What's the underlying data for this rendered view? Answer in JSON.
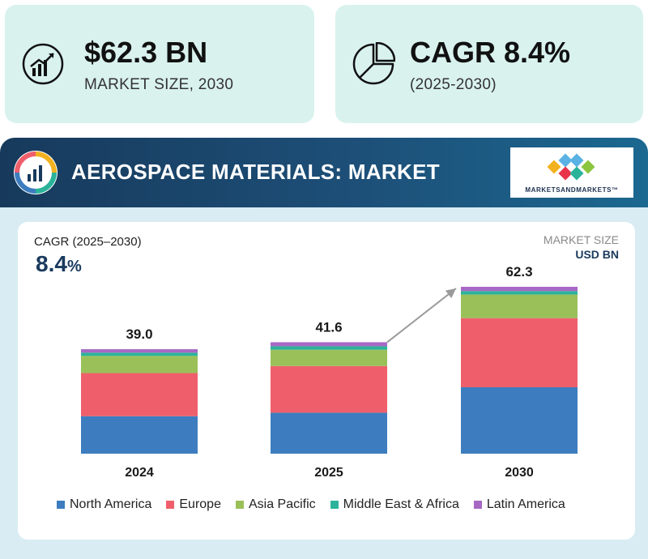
{
  "cards": {
    "market_size": {
      "value": "$62.3 BN",
      "label": "MARKET SIZE, 2030",
      "icon": "growth-chart-icon"
    },
    "cagr": {
      "value": "CAGR 8.4%",
      "label": "(2025-2030)",
      "icon": "pie-chart-icon"
    }
  },
  "banner": {
    "title": "AEROSPACE MATERIALS: MARKET",
    "icon": "donut-bar-chart-icon"
  },
  "logo": {
    "text": "MARKETSANDMARKETS™"
  },
  "chart_data": {
    "type": "bar",
    "stacked": true,
    "cagr_label": "CAGR (2025–2030)",
    "cagr_value": "8.4",
    "cagr_unit": "%",
    "market_size_label": "MARKET SIZE",
    "unit_label": "USD BN",
    "categories": [
      "2024",
      "2025",
      "2030"
    ],
    "totals": [
      39.0,
      41.6,
      62.3
    ],
    "total_labels": [
      "39.0",
      "41.6",
      "62.3"
    ],
    "series": [
      {
        "name": "North America",
        "values": [
          14.0,
          15.3,
          24.8
        ],
        "color": "#3d7dbf"
      },
      {
        "name": "Europe",
        "values": [
          16.1,
          17.4,
          25.8
        ],
        "color": "#ef5f6b"
      },
      {
        "name": "Asia Pacific",
        "values": [
          6.4,
          6.1,
          8.8
        ],
        "color": "#9ac05a"
      },
      {
        "name": "Middle East & Africa",
        "values": [
          1.2,
          1.3,
          1.3
        ],
        "color": "#2bb39a"
      },
      {
        "name": "Latin America",
        "values": [
          1.3,
          1.5,
          1.6
        ],
        "color": "#a768c4"
      }
    ],
    "ylim": [
      0,
      62.3
    ],
    "grid": false,
    "legend_position": "bottom",
    "growth_arrow": {
      "from": "2025",
      "to": "2030"
    }
  }
}
